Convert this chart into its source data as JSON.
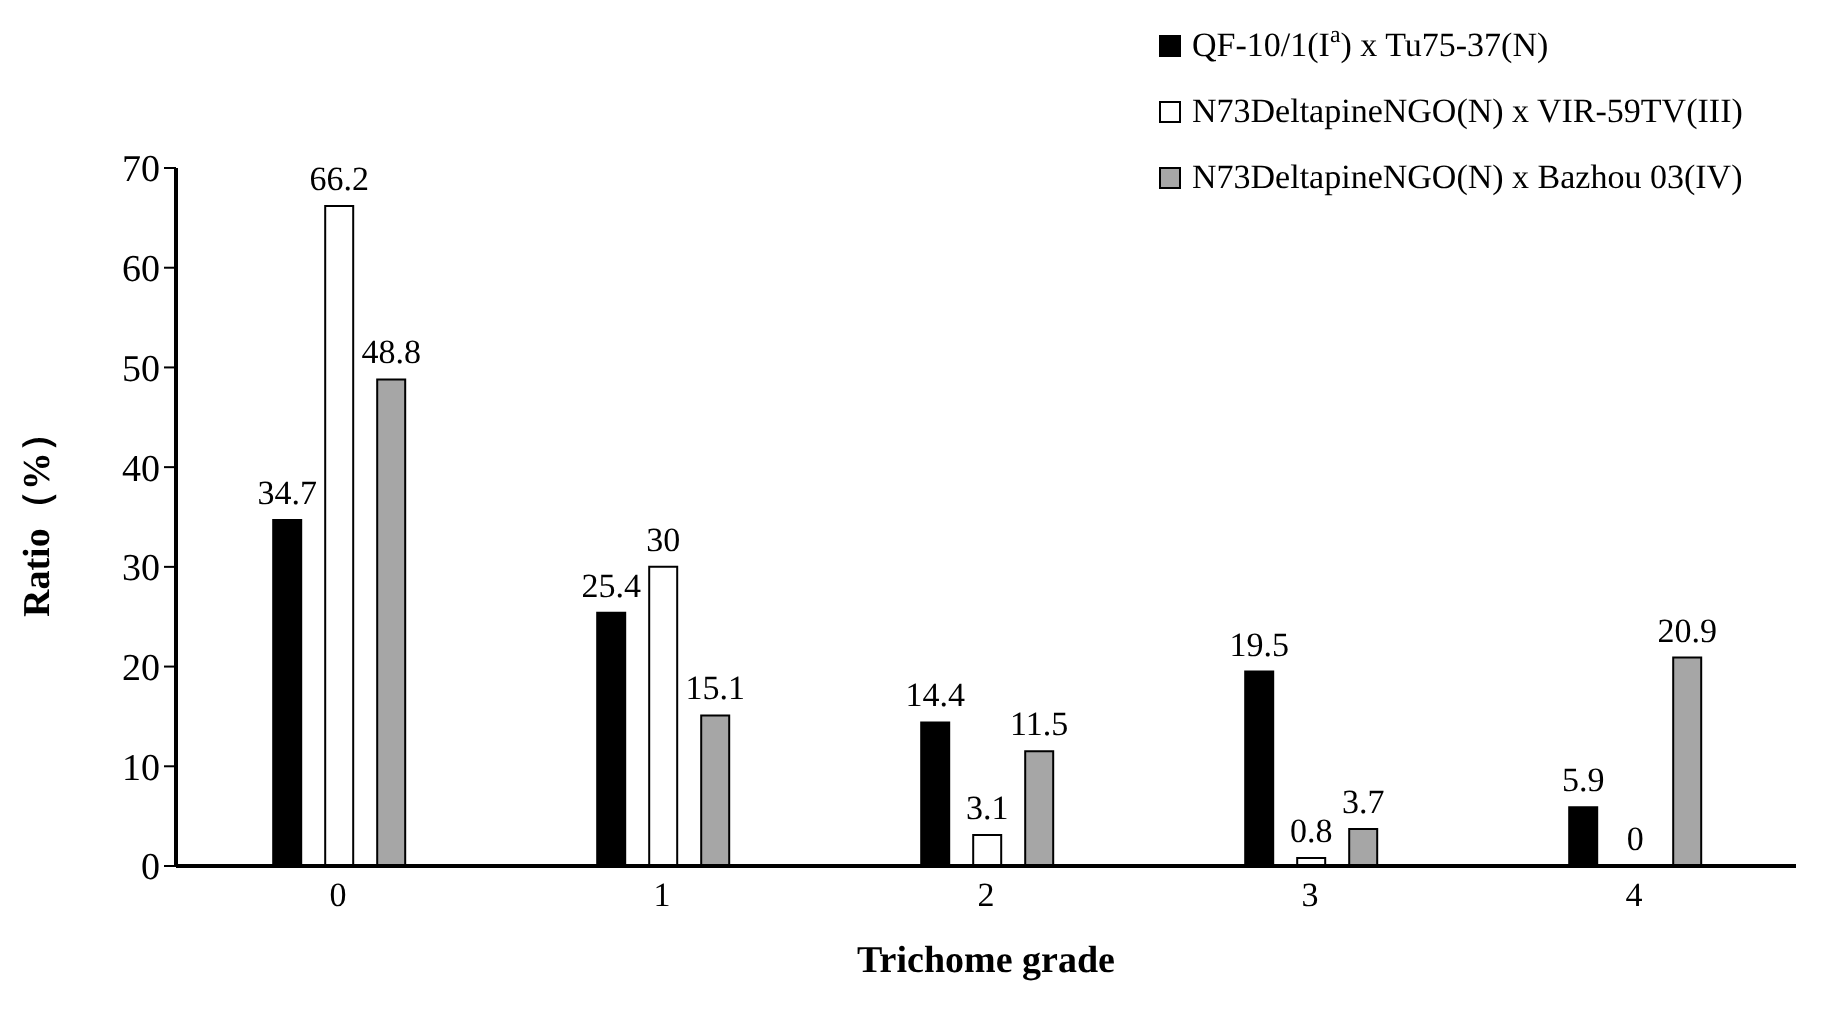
{
  "chart_data": {
    "type": "bar",
    "xlabel": "Trichome grade",
    "ylabel": "Ratio（%）",
    "categories": [
      "0",
      "1",
      "2",
      "3",
      "4"
    ],
    "series": [
      {
        "name": "QF-10/1(I$^{a}$) x Tu75-37(N)",
        "color": "#000000",
        "values": [
          34.7,
          25.4,
          14.4,
          19.5,
          5.9
        ]
      },
      {
        "name": "N73DeltapineNGO(N) x VIR-59TV(III)",
        "color": "#ffffff",
        "values": [
          66.2,
          30,
          3.1,
          0.8,
          0
        ]
      },
      {
        "name": "N73DeltapineNGO(N) x Bazhou 03(IV)",
        "color": "#a6a6a6",
        "values": [
          48.8,
          15.1,
          11.5,
          3.7,
          20.9
        ]
      }
    ],
    "ylim": [
      0,
      70
    ],
    "yticks": [
      0,
      10,
      20,
      30,
      40,
      50,
      60,
      70
    ],
    "grid": false,
    "legend": "top right",
    "data_labels": true
  }
}
